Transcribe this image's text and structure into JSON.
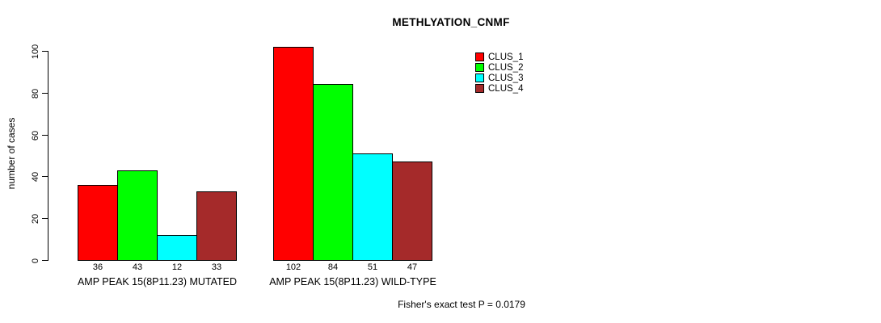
{
  "title": "METHLYATION_CNMF",
  "footer": "Fisher's exact test P = 0.0179",
  "chart_data": {
    "type": "bar",
    "title": "METHLYATION_CNMF",
    "ylabel": "number of cases",
    "xlabel": "",
    "categories": [
      "AMP PEAK 15(8P11.23) MUTATED",
      "AMP PEAK 15(8P11.23) WILD-TYPE"
    ],
    "series": [
      {
        "name": "CLUS_1",
        "color": "#FF0000",
        "values": [
          36,
          102
        ]
      },
      {
        "name": "CLUS_2",
        "color": "#00FF00",
        "values": [
          43,
          84
        ]
      },
      {
        "name": "CLUS_3",
        "color": "#00FFFF",
        "values": [
          12,
          51
        ]
      },
      {
        "name": "CLUS_4",
        "color": "#A52A2A",
        "values": [
          33,
          47
        ]
      }
    ],
    "yticks": [
      0,
      20,
      40,
      60,
      80,
      100
    ],
    "ylim": [
      0,
      100
    ],
    "grid": false,
    "legend_position": "top-right",
    "bar_value_labels": true,
    "annotation": "Fisher's exact test P = 0.0179"
  }
}
